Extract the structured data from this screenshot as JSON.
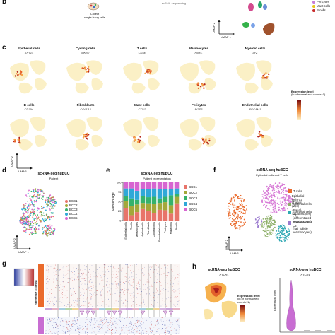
{
  "panel_letters": {
    "b": "b",
    "c": "c",
    "d": "d",
    "e": "e",
    "f": "f",
    "g": "g",
    "h": "h"
  },
  "panel_a": {
    "collect_label": "Collect\nsingle living cells",
    "seq_label": "scRNA-sequencing"
  },
  "panel_b": {
    "legend": [
      {
        "label": "Pericytes",
        "color": "#c77dd6"
      },
      {
        "label": "Mast cells",
        "color": "#e8c619"
      },
      {
        "label": "B cells",
        "color": "#c82b2b"
      }
    ],
    "umap_x": "UMAP 1",
    "umap_y": "UMAP 2"
  },
  "panel_c": {
    "cells": [
      {
        "title": "Epithelial cells",
        "gene": "KRT14"
      },
      {
        "title": "Cycling cells",
        "gene": "MKI67"
      },
      {
        "title": "T cells",
        "gene": "CD3E"
      },
      {
        "title": "Melanocytes",
        "gene": "PMEL"
      },
      {
        "title": "Myeloid cells",
        "gene": "LYZ"
      },
      {
        "title": "B cells",
        "gene": "CD79A"
      },
      {
        "title": "Fibroblasts",
        "gene": "COL1A2"
      },
      {
        "title": "Mast cells",
        "gene": "CTSG"
      },
      {
        "title": "Pericytes",
        "gene": "RGS5"
      },
      {
        "title": "Endothelial cells",
        "gene": "PECAM1"
      }
    ],
    "expression_title": "Expression level",
    "expression_sub": "(ln of normalized counts+1)",
    "umap_x": "UMAP 1",
    "umap_y": "UMAP 2"
  },
  "panel_d": {
    "title": "scRNA-seq huBCC",
    "subtitle": "Patient",
    "legend": [
      {
        "label": "BCC1",
        "color": "#e8746a"
      },
      {
        "label": "BCC2",
        "color": "#a3a83a"
      },
      {
        "label": "BCC3",
        "color": "#35b26b"
      },
      {
        "label": "BCC4",
        "color": "#2fa8d8"
      },
      {
        "label": "BCC5",
        "color": "#d765d1"
      }
    ],
    "umap_x": "UMAP 1",
    "umap_y": "UMAP 2"
  },
  "panel_e": {
    "title": "scRNA-seq huBCC",
    "subtitle": "Patient representation"
  },
  "chart_data": {
    "type": "bar",
    "stacked": true,
    "title": "scRNA-seq huBCC",
    "subtitle": "Patient representation",
    "ylabel": "Percentage",
    "xlabel": "",
    "ylim": [
      0,
      100
    ],
    "yticks": [
      0,
      25,
      50,
      75,
      100
    ],
    "categories": [
      "Epithelial cells",
      "T cells",
      "Melanocytes",
      "Myeloid cells",
      "Fibroblasts",
      "Cycling cells",
      "Endothelial cells",
      "Pericytes",
      "Mast cells",
      "B cells"
    ],
    "series": [
      {
        "name": "BCC1",
        "color": "#e8746a",
        "values": [
          32,
          14,
          22,
          30,
          25,
          20,
          28,
          27,
          18,
          45
        ]
      },
      {
        "name": "BCC2",
        "color": "#a3a83a",
        "values": [
          18,
          24,
          20,
          16,
          20,
          24,
          18,
          21,
          22,
          17
        ]
      },
      {
        "name": "BCC3",
        "color": "#35b26b",
        "values": [
          14,
          20,
          12,
          18,
          16,
          18,
          12,
          14,
          26,
          8
        ]
      },
      {
        "name": "BCC4",
        "color": "#2fa8d8",
        "values": [
          20,
          26,
          24,
          18,
          21,
          22,
          24,
          20,
          16,
          14
        ]
      },
      {
        "name": "BCC5",
        "color": "#d765d1",
        "values": [
          16,
          16,
          22,
          18,
          18,
          16,
          18,
          18,
          18,
          16
        ]
      }
    ],
    "legend_position": "right"
  },
  "panel_f": {
    "title": "scRNA-seq huBCC",
    "subtitle": "Epithelial cells and T cells",
    "legend": [
      {
        "label": "T cells",
        "color": "#ea6a2b"
      },
      {
        "label": "Epithelial cells C0\n(Tumor cells)",
        "color": "#d77ad6"
      },
      {
        "label": "Epithelial cells C1\n(Basal keratinocytes)",
        "color": "#8fb06a"
      },
      {
        "label": "Epithelial cells C2\n(differentiated\nkeratinocytes)",
        "color": "#2fa8b3"
      },
      {
        "label": "Epithelial cells C3\n(hair follicle\nkeratinocytes)",
        "color": "#9b7bcf"
      }
    ],
    "umap_x": "UMAP 1",
    "umap_y": "UMAP 2"
  },
  "panel_g": {
    "reference_label": "Reference (T cells)"
  },
  "panel_h": {
    "left_title": "scRNA-seq huBCC",
    "left_gene": "PTCH1",
    "right_title": "scRNA-seq huBCC",
    "right_gene": "PTCH1",
    "expression_title": "Expression level",
    "expression_sub": "(ln of normalized counts+1)",
    "ylabel": "Expression level"
  },
  "colors": {
    "expr_low": "#fdf2c8",
    "expr_high": "#c0261f",
    "heat_red": "#c83232",
    "heat_blue": "#3040a0"
  }
}
